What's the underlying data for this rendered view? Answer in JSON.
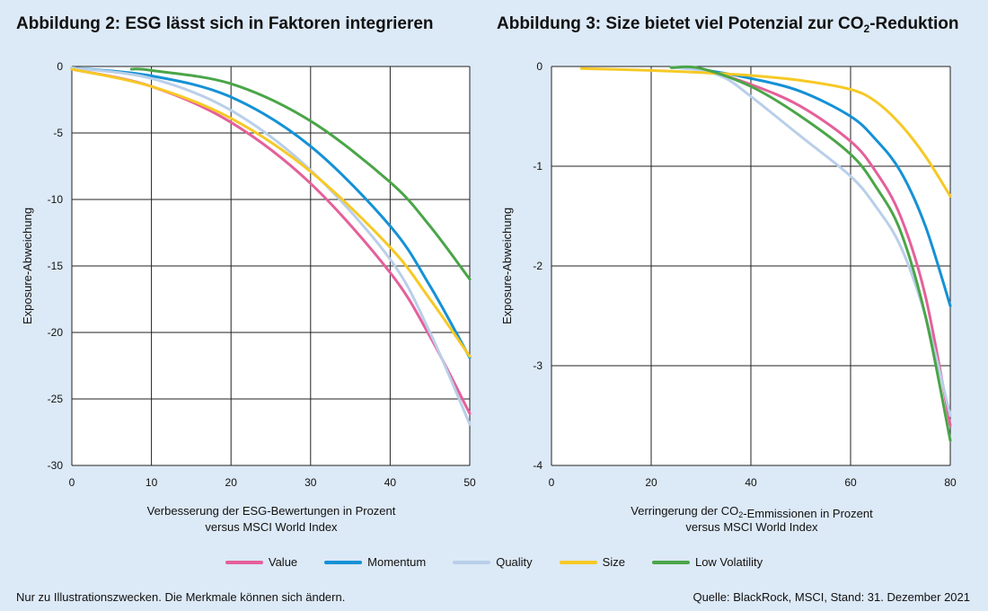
{
  "colors": {
    "Value": "#e4609a",
    "Momentum": "#1591d6",
    "Quality": "#b9cfe9",
    "Size": "#f6c926",
    "Low Volatility": "#4aa548"
  },
  "legend": [
    "Value",
    "Momentum",
    "Quality",
    "Size",
    "Low Volatility"
  ],
  "footer": {
    "note": "Nur zu Illustrationszwecken. Die Merkmale können sich ändern.",
    "source": "Quelle: BlackRock, MSCI, Stand: 31. Dezember 2021"
  },
  "chart_data": [
    {
      "type": "line",
      "title": "Abbildung 2: ESG lässt sich in Faktoren integrieren",
      "xlabel": "Verbesserung der ESG-Bewertungen in Prozent versus MSCI World Index",
      "ylabel": "Exposure-Abweichung",
      "xlim": [
        0,
        50
      ],
      "ylim": [
        -30,
        0
      ],
      "xticks": [
        0,
        10,
        20,
        30,
        40,
        50
      ],
      "yticks": [
        0,
        -5,
        -10,
        -15,
        -20,
        -25,
        -30
      ],
      "grid": true,
      "series": [
        {
          "name": "Value",
          "x": [
            0,
            10,
            20,
            30,
            40,
            45,
            50
          ],
          "y": [
            -0.2,
            -1.5,
            -4.2,
            -8.8,
            -15.5,
            -20.3,
            -26.1
          ]
        },
        {
          "name": "Momentum",
          "x": [
            0,
            10,
            20,
            30,
            40,
            45,
            50
          ],
          "y": [
            -0.1,
            -0.7,
            -2.3,
            -6.0,
            -12.0,
            -16.5,
            -21.9
          ]
        },
        {
          "name": "Quality",
          "x": [
            0,
            10,
            20,
            30,
            40,
            45,
            50
          ],
          "y": [
            -0.1,
            -0.9,
            -3.3,
            -7.8,
            -14.5,
            -20.0,
            -26.9
          ]
        },
        {
          "name": "Size",
          "x": [
            0,
            10,
            20,
            30,
            40,
            45,
            50
          ],
          "y": [
            -0.2,
            -1.5,
            -3.9,
            -7.9,
            -13.6,
            -17.5,
            -21.8
          ]
        },
        {
          "name": "Low Volatility",
          "x": [
            7.5,
            10,
            20,
            30,
            40,
            45,
            50
          ],
          "y": [
            -0.2,
            -0.3,
            -1.3,
            -4.1,
            -8.7,
            -12.0,
            -16.0
          ]
        }
      ]
    },
    {
      "type": "line",
      "title": "Abbildung 3: Size bietet viel Potenzial zur CO2-Reduktion",
      "xlabel": "Verringerung der CO2-Emmissionen in Prozent versus MSCI World Index",
      "ylabel": "Exposure-Abweichung",
      "xlim": [
        0,
        80
      ],
      "ylim": [
        -4,
        0
      ],
      "xticks": [
        0,
        20,
        40,
        60,
        80
      ],
      "yticks": [
        0,
        -1,
        -2,
        -3,
        -4
      ],
      "grid": true,
      "series": [
        {
          "name": "Value",
          "x": [
            24,
            30,
            40,
            50,
            60,
            65,
            70,
            75,
            80
          ],
          "y": [
            -0.01,
            -0.03,
            -0.18,
            -0.4,
            -0.75,
            -1.05,
            -1.5,
            -2.3,
            -3.6
          ]
        },
        {
          "name": "Momentum",
          "x": [
            24,
            30,
            40,
            50,
            60,
            65,
            70,
            75,
            80
          ],
          "y": [
            -0.01,
            -0.03,
            -0.12,
            -0.25,
            -0.5,
            -0.73,
            -1.05,
            -1.6,
            -2.4
          ]
        },
        {
          "name": "Quality",
          "x": [
            24,
            30,
            35,
            40,
            50,
            60,
            65,
            70,
            75,
            80
          ],
          "y": [
            -0.01,
            -0.04,
            -0.12,
            -0.3,
            -0.7,
            -1.1,
            -1.4,
            -1.8,
            -2.5,
            -3.5
          ]
        },
        {
          "name": "Size",
          "x": [
            6,
            20,
            30,
            40,
            50,
            60,
            65,
            70,
            75,
            80
          ],
          "y": [
            -0.02,
            -0.04,
            -0.06,
            -0.09,
            -0.14,
            -0.23,
            -0.35,
            -0.58,
            -0.9,
            -1.3
          ]
        },
        {
          "name": "Low Volatility",
          "x": [
            24,
            30,
            40,
            50,
            60,
            65,
            70,
            75,
            80
          ],
          "y": [
            -0.01,
            -0.02,
            -0.2,
            -0.5,
            -0.88,
            -1.2,
            -1.65,
            -2.5,
            -3.75
          ]
        }
      ]
    }
  ]
}
